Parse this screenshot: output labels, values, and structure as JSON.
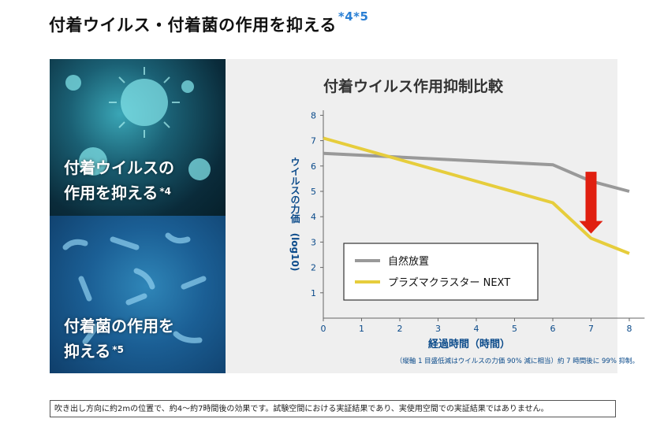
{
  "heading": {
    "text": "付着ウイルス・付着菌の作用を抑える",
    "mark": "*4*5"
  },
  "image_virus": {
    "line1": "付着ウイルスの",
    "line2": "作用を抑える",
    "mark": "*4"
  },
  "image_bacteria": {
    "line1": "付着菌の作用を",
    "line2": "抑える",
    "mark": "*5"
  },
  "colors": {
    "natural": "#999999",
    "product": "#e6cd3c",
    "arrow": "#e01f10",
    "mark": "#2a7fd4"
  },
  "chart_data": {
    "type": "line",
    "title": "付着ウイルス作用抑制比較",
    "xlabel": "経過時間（時間）",
    "ylabel": "ウイルスの力価　(log10)",
    "xlim": [
      0,
      8
    ],
    "ylim": [
      0,
      8
    ],
    "x_ticks": [
      0,
      1,
      2,
      3,
      4,
      5,
      6,
      7,
      8
    ],
    "y_ticks": [
      1,
      2,
      3,
      4,
      5,
      6,
      7,
      8
    ],
    "series": [
      {
        "name": "自然放置",
        "x": [
          0,
          6,
          7,
          8
        ],
        "y": [
          6.5,
          6.05,
          5.4,
          5.0
        ]
      },
      {
        "name": "プラズマクラスター NEXT",
        "x": [
          0,
          6,
          7,
          8
        ],
        "y": [
          7.1,
          4.55,
          3.15,
          2.55
        ]
      }
    ],
    "annotation": {
      "type": "arrow-down",
      "x": 7,
      "from": 5.4,
      "to": 3.15
    },
    "footnote": "（縦軸 1 目盛低減はウイルスの力価 90% 減に相当）約 7 時間後に 99% 抑制。",
    "legend_position": "bottom-right"
  },
  "footer_note": "吹き出し方向に約2mの位置で、約4〜約7時間後の効果です。試験空間における実証結果であり、実使用空間での実証結果ではありません。"
}
